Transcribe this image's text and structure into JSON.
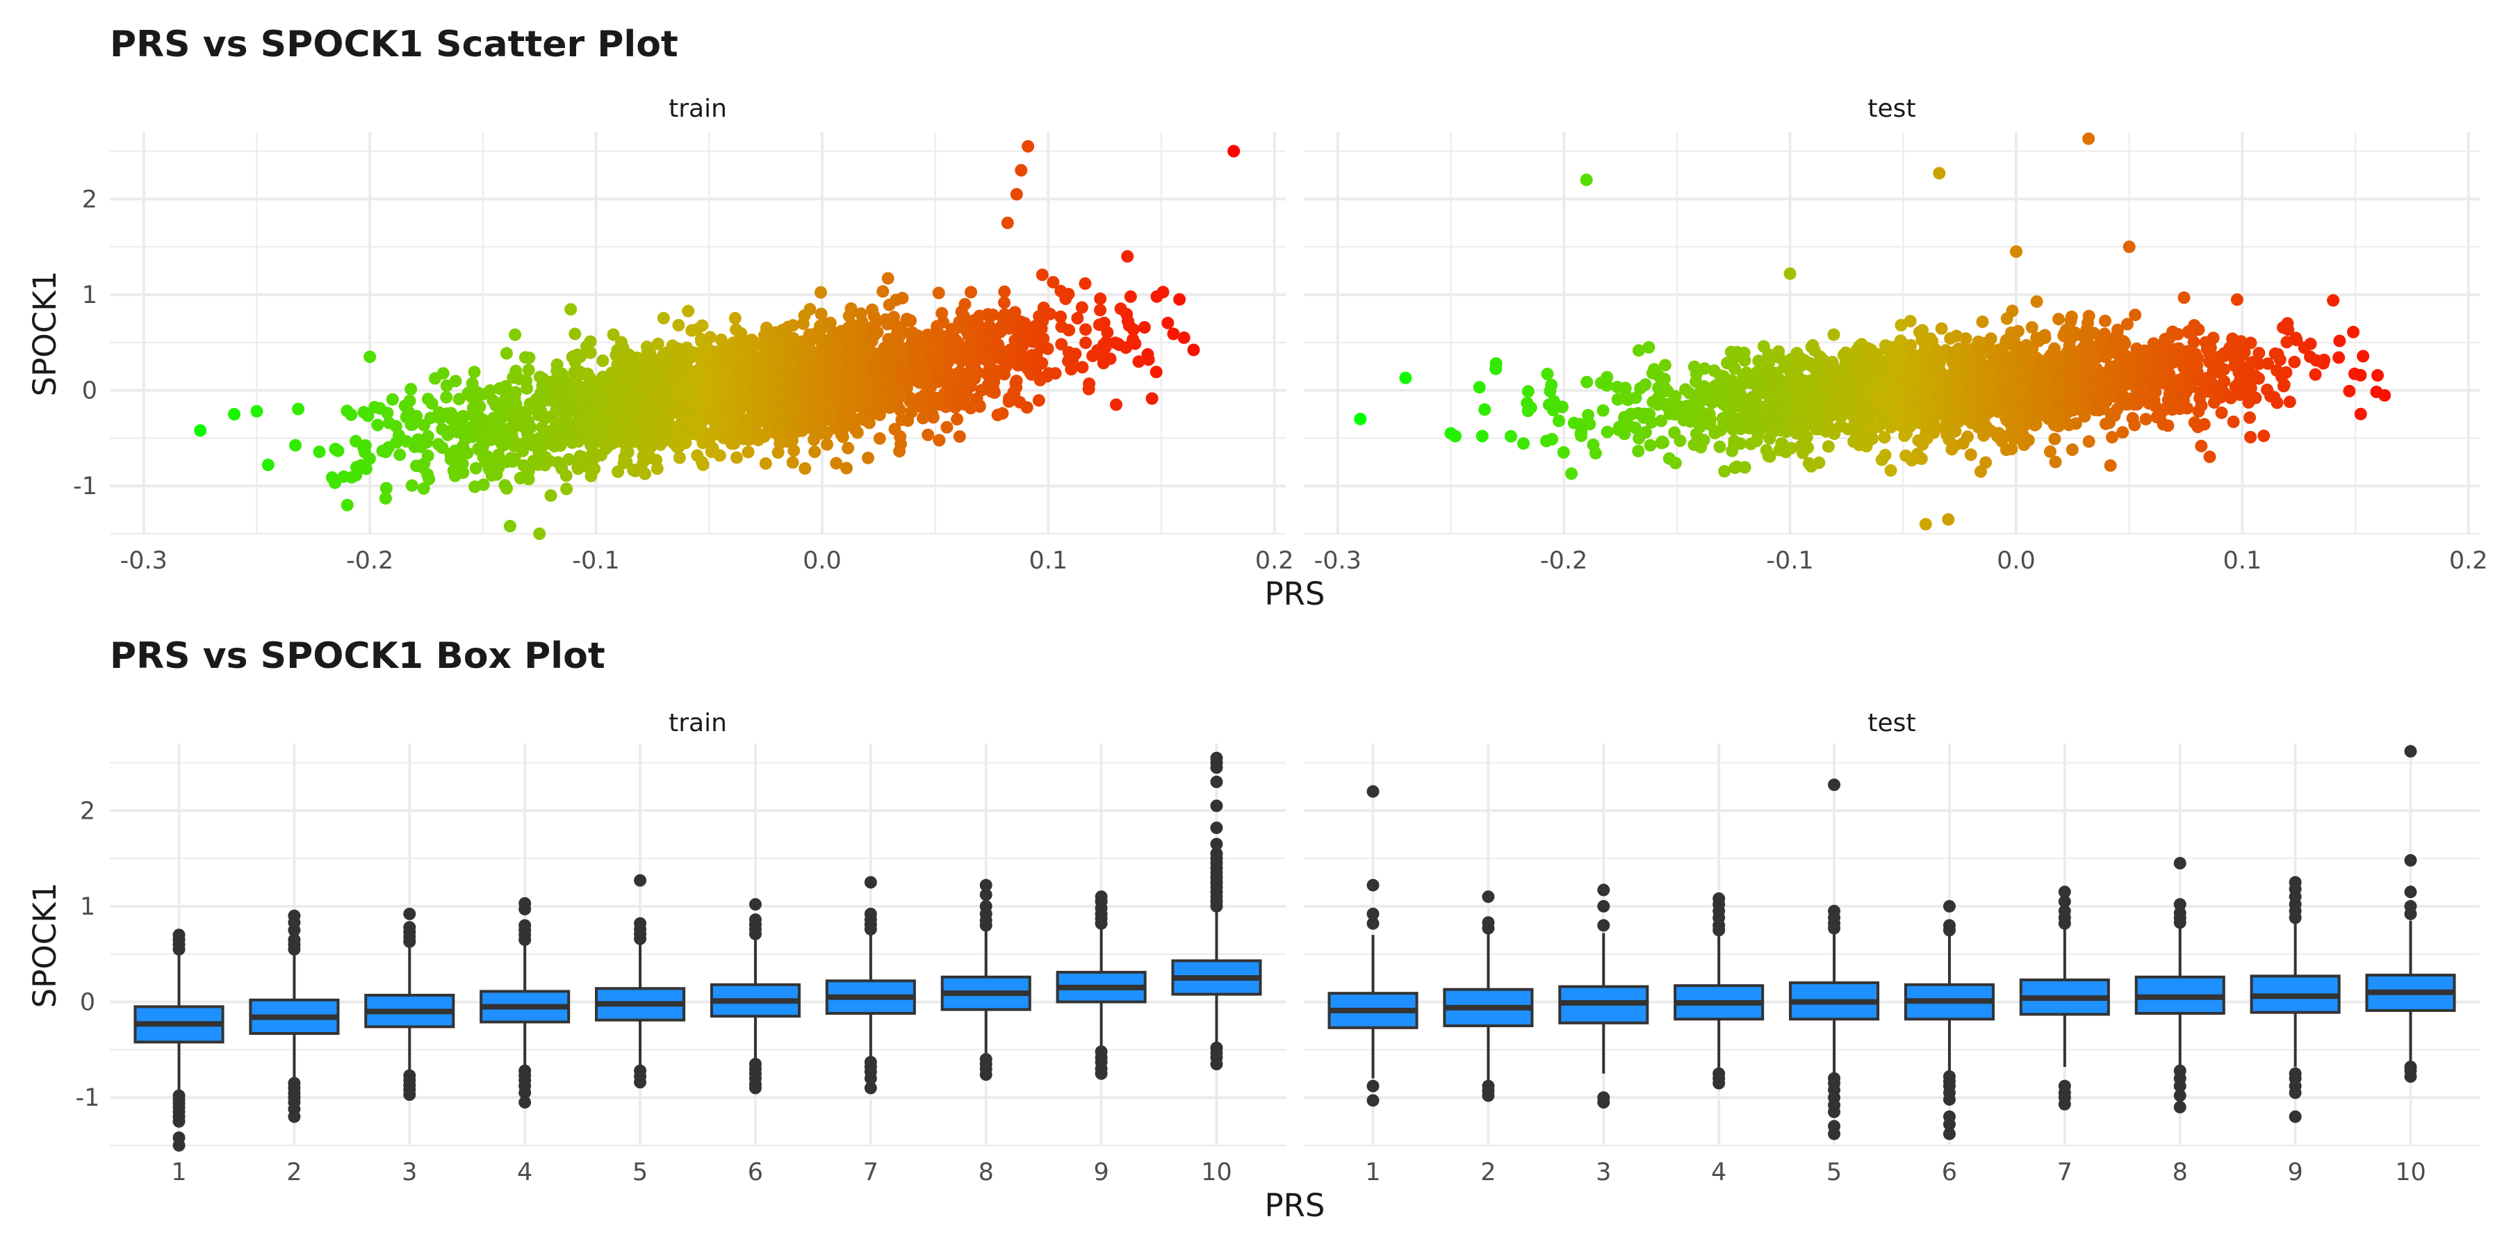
{
  "chart_data": [
    {
      "type": "scatter",
      "title": "PRS vs SPOCK1 Scatter Plot",
      "xlabel": "PRS",
      "ylabel": "SPOCK1",
      "facets": [
        "train",
        "test"
      ],
      "xlim": [
        -0.3,
        0.2
      ],
      "ylim": [
        -1.5,
        2.7
      ],
      "xticks": [
        "-0.3",
        "-0.2",
        "-0.1",
        "0.0",
        "0.1",
        "0.2"
      ],
      "yticks": [
        "-1",
        "0",
        "1",
        "2"
      ],
      "color_scale": {
        "low": "#00ff00",
        "mid": "#c8b000",
        "high": "#ff0000"
      },
      "grid": true,
      "clouds": {
        "train": {
          "n": 2600,
          "x_mean": -0.03,
          "x_sd": 0.07,
          "slope": 3.2,
          "y_sd": 0.3
        },
        "test": {
          "n": 2000,
          "x_mean": -0.03,
          "x_sd": 0.07,
          "slope": 1.5,
          "y_sd": 0.26
        }
      },
      "outliers": {
        "train": [
          {
            "x": 0.182,
            "y": 2.5
          },
          {
            "x": 0.091,
            "y": 2.55
          },
          {
            "x": 0.088,
            "y": 2.3
          },
          {
            "x": 0.086,
            "y": 2.05
          },
          {
            "x": 0.082,
            "y": 1.75
          },
          {
            "x": 0.135,
            "y": 1.4
          },
          {
            "x": 0.158,
            "y": 0.95
          },
          {
            "x": 0.148,
            "y": 0.98
          },
          {
            "x": 0.16,
            "y": 0.55
          },
          {
            "x": -0.275,
            "y": -0.42
          },
          {
            "x": -0.26,
            "y": -0.25
          },
          {
            "x": -0.245,
            "y": -0.78
          },
          {
            "x": -0.25,
            "y": -0.22
          },
          {
            "x": -0.2,
            "y": 0.35
          },
          {
            "x": -0.21,
            "y": -1.2
          },
          {
            "x": -0.125,
            "y": -1.5
          },
          {
            "x": -0.138,
            "y": -1.42
          },
          {
            "x": -0.12,
            "y": -1.1
          },
          {
            "x": 0.14,
            "y": 0.3
          },
          {
            "x": 0.13,
            "y": -0.15
          }
        ],
        "test": [
          {
            "x": -0.29,
            "y": -0.3
          },
          {
            "x": -0.27,
            "y": 0.13
          },
          {
            "x": -0.25,
            "y": -0.45
          },
          {
            "x": -0.248,
            "y": -0.48
          },
          {
            "x": -0.19,
            "y": 2.2
          },
          {
            "x": -0.034,
            "y": 2.27
          },
          {
            "x": 0.032,
            "y": 2.63
          },
          {
            "x": 0.05,
            "y": 1.5
          },
          {
            "x": 0.0,
            "y": 1.45
          },
          {
            "x": -0.1,
            "y": 1.22
          },
          {
            "x": -0.04,
            "y": -1.4
          },
          {
            "x": -0.03,
            "y": -1.35
          },
          {
            "x": 0.13,
            "y": 0.35
          },
          {
            "x": 0.12,
            "y": 0.7
          },
          {
            "x": -0.23,
            "y": 0.28
          }
        ]
      }
    },
    {
      "type": "box",
      "title": "PRS vs SPOCK1 Box Plot",
      "xlabel": "PRS",
      "ylabel": "SPOCK1",
      "facets": [
        "train",
        "test"
      ],
      "categories": [
        "1",
        "2",
        "3",
        "4",
        "5",
        "6",
        "7",
        "8",
        "9",
        "10"
      ],
      "ylim": [
        -1.5,
        2.7
      ],
      "yticks": [
        "-1",
        "0",
        "1",
        "2"
      ],
      "fill": "#1e90ff",
      "grid": true,
      "boxes": {
        "train": [
          {
            "q1": -0.42,
            "median": -0.23,
            "q3": -0.05,
            "lo": -0.93,
            "hi": 0.5,
            "out": [
              0.55,
              0.6,
              0.65,
              0.7,
              -0.98,
              -1.02,
              -1.06,
              -1.1,
              -1.15,
              -1.2,
              -1.25,
              -1.42,
              -1.5
            ]
          },
          {
            "q1": -0.33,
            "median": -0.16,
            "q3": 0.02,
            "lo": -0.82,
            "hi": 0.52,
            "out": [
              0.55,
              0.6,
              0.65,
              0.75,
              0.83,
              0.9,
              -0.85,
              -0.9,
              -0.95,
              -1.0,
              -1.05,
              -1.12,
              -1.2
            ]
          },
          {
            "q1": -0.26,
            "median": -0.1,
            "q3": 0.07,
            "lo": -0.73,
            "hi": 0.58,
            "out": [
              0.63,
              0.68,
              0.73,
              0.78,
              0.92,
              -0.77,
              -0.82,
              -0.87,
              -0.92,
              -0.97
            ]
          },
          {
            "q1": -0.21,
            "median": -0.05,
            "q3": 0.11,
            "lo": -0.68,
            "hi": 0.6,
            "out": [
              0.65,
              0.7,
              0.75,
              0.8,
              0.97,
              1.03,
              -0.72,
              -0.77,
              -0.82,
              -0.88,
              -0.95,
              -1.05
            ]
          },
          {
            "q1": -0.19,
            "median": -0.02,
            "q3": 0.14,
            "lo": -0.68,
            "hi": 0.62,
            "out": [
              0.66,
              0.71,
              0.76,
              0.82,
              1.27,
              -0.72,
              -0.78,
              -0.84
            ]
          },
          {
            "q1": -0.15,
            "median": 0.01,
            "q3": 0.18,
            "lo": -0.62,
            "hi": 0.67,
            "out": [
              0.71,
              0.76,
              0.81,
              0.86,
              1.02,
              -0.65,
              -0.7,
              -0.75,
              -0.8,
              -0.86,
              -0.9
            ]
          },
          {
            "q1": -0.12,
            "median": 0.05,
            "q3": 0.22,
            "lo": -0.6,
            "hi": 0.72,
            "out": [
              0.76,
              0.81,
              0.86,
              0.92,
              1.25,
              -0.63,
              -0.68,
              -0.73,
              -0.8,
              -0.9
            ]
          },
          {
            "q1": -0.08,
            "median": 0.09,
            "q3": 0.26,
            "lo": -0.56,
            "hi": 0.76,
            "out": [
              0.8,
              0.85,
              0.92,
              1.0,
              1.12,
              1.22,
              -0.6,
              -0.65,
              -0.7,
              -0.76
            ]
          },
          {
            "q1": 0.0,
            "median": 0.15,
            "q3": 0.31,
            "lo": -0.48,
            "hi": 0.78,
            "out": [
              0.82,
              0.87,
              0.92,
              0.98,
              1.05,
              1.1,
              -0.52,
              -0.58,
              -0.63,
              -0.7,
              -0.75
            ]
          },
          {
            "q1": 0.08,
            "median": 0.25,
            "q3": 0.43,
            "lo": -0.42,
            "hi": 0.95,
            "out": [
              1.0,
              1.05,
              1.1,
              1.15,
              1.2,
              1.25,
              1.3,
              1.35,
              1.4,
              1.45,
              1.5,
              1.55,
              1.65,
              1.82,
              2.05,
              2.3,
              2.45,
              2.5,
              2.55,
              -0.48,
              -0.53,
              -0.58,
              -0.65
            ]
          }
        ],
        "test": [
          {
            "q1": -0.27,
            "median": -0.09,
            "q3": 0.09,
            "lo": -0.8,
            "hi": 0.7,
            "out": [
              0.82,
              0.92,
              1.22,
              2.2,
              -0.88,
              -1.03
            ]
          },
          {
            "q1": -0.25,
            "median": -0.06,
            "q3": 0.13,
            "lo": -0.82,
            "hi": 0.72,
            "out": [
              0.77,
              0.83,
              1.1,
              -0.88,
              -0.93,
              -0.98
            ]
          },
          {
            "q1": -0.22,
            "median": -0.01,
            "q3": 0.16,
            "lo": -0.75,
            "hi": 0.72,
            "out": [
              0.8,
              1.0,
              1.17,
              -1.0,
              -1.05
            ]
          },
          {
            "q1": -0.18,
            "median": -0.01,
            "q3": 0.17,
            "lo": -0.72,
            "hi": 0.7,
            "out": [
              0.75,
              0.8,
              0.88,
              0.95,
              1.02,
              1.08,
              -0.75,
              -0.8,
              -0.85
            ]
          },
          {
            "q1": -0.18,
            "median": 0.0,
            "q3": 0.2,
            "lo": -0.74,
            "hi": 0.72,
            "out": [
              0.77,
              0.82,
              0.88,
              0.95,
              2.27,
              -0.8,
              -0.85,
              -0.92,
              -1.0,
              -1.08,
              -1.15,
              -1.3,
              -1.38
            ]
          },
          {
            "q1": -0.18,
            "median": 0.01,
            "q3": 0.18,
            "lo": -0.72,
            "hi": 0.7,
            "out": [
              0.75,
              0.8,
              1.0,
              -0.78,
              -0.83,
              -0.88,
              -0.95,
              -1.02,
              -1.2,
              -1.28,
              -1.38
            ]
          },
          {
            "q1": -0.13,
            "median": 0.04,
            "q3": 0.23,
            "lo": -0.68,
            "hi": 0.76,
            "out": [
              0.82,
              0.88,
              0.95,
              1.05,
              1.15,
              -0.88,
              -0.95,
              -1.0,
              -1.07
            ]
          },
          {
            "q1": -0.12,
            "median": 0.05,
            "q3": 0.26,
            "lo": -0.66,
            "hi": 0.78,
            "out": [
              0.83,
              0.88,
              0.93,
              1.02,
              1.45,
              -0.72,
              -0.8,
              -0.88,
              -0.98,
              -1.1
            ]
          },
          {
            "q1": -0.11,
            "median": 0.06,
            "q3": 0.27,
            "lo": -0.68,
            "hi": 0.82,
            "out": [
              0.88,
              0.95,
              1.02,
              1.1,
              1.18,
              1.25,
              -0.75,
              -0.8,
              -0.88,
              -0.95,
              -1.2
            ]
          },
          {
            "q1": -0.09,
            "median": 0.1,
            "q3": 0.28,
            "lo": -0.62,
            "hi": 0.85,
            "out": [
              0.92,
              1.0,
              1.15,
              1.48,
              2.62,
              -0.68,
              -0.72,
              -0.78
            ]
          }
        ]
      }
    }
  ]
}
